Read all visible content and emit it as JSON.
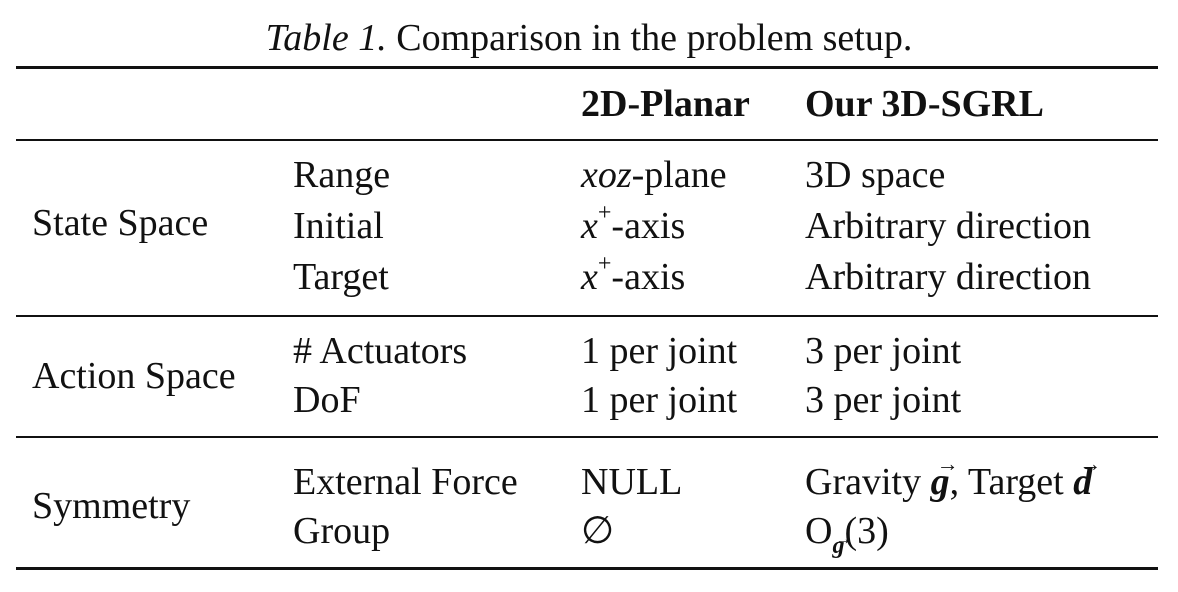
{
  "caption": {
    "label": "Table 1.",
    "text": "Comparison in the problem setup."
  },
  "table": {
    "headers": {
      "col3": "2D-Planar",
      "col4": "Our 3D-SGRL"
    },
    "groups": [
      {
        "name": "State Space",
        "rows": [
          {
            "attribute": "Range",
            "planar_var": "xoz",
            "planar_suffix": "-plane",
            "ours": "3D space"
          },
          {
            "attribute": "Initial",
            "planar_var": "x",
            "planar_sup": "+",
            "planar_suffix": "-axis",
            "ours": "Arbitrary direction"
          },
          {
            "attribute": "Target",
            "planar_var": "x",
            "planar_sup": "+",
            "planar_suffix": "-axis",
            "ours": "Arbitrary direction"
          }
        ]
      },
      {
        "name": "Action Space",
        "rows": [
          {
            "attribute": "# Actuators",
            "planar": "1 per joint",
            "ours": "3 per joint"
          },
          {
            "attribute": "DoF",
            "planar": "1 per joint",
            "ours": "3 per joint"
          }
        ]
      },
      {
        "name": "Symmetry",
        "rows": [
          {
            "attribute": "External Force",
            "planar": "NULL",
            "ours_parts": [
              "Gravity ",
              "g",
              ", Target ",
              "d"
            ]
          },
          {
            "attribute": "Group",
            "planar": "∅",
            "ours_main": "O",
            "ours_sub": "g",
            "ours_suffix": "(3)"
          }
        ]
      }
    ]
  }
}
